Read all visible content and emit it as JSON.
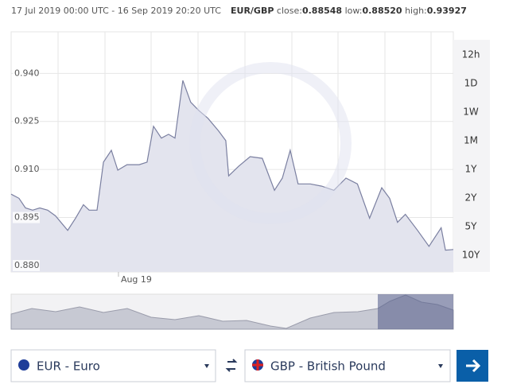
{
  "header": {
    "range": "17 Jul 2019 00:00 UTC - 16 Sep 2019 20:20 UTC",
    "pair": "EUR/GBP",
    "close_label": "close:",
    "close": "0.88548",
    "low_label": "low:",
    "low": "0.88520",
    "high_label": "high:",
    "high": "0.93927"
  },
  "ranges": [
    "12h",
    "1D",
    "1W",
    "1M",
    "1Y",
    "2Y",
    "5Y",
    "10Y"
  ],
  "from_currency": "EUR - Euro",
  "to_currency": "GBP - British Pound",
  "chart_data": {
    "type": "area",
    "color": "#7a7fa0",
    "fill": "#e3e4ee",
    "x": [
      0,
      1.1,
      2,
      3,
      4,
      5.1,
      6.2,
      7.9,
      9,
      10.1,
      10.9,
      12,
      12.9,
      14,
      14.9,
      16.2,
      17.9,
      19,
      19.9,
      21,
      22,
      22.9,
      24,
      25.1,
      26.2,
      27.5,
      29,
      30,
      30.4,
      31.8,
      33.4,
      35.1,
      36.8,
      37.9,
      39,
      40.1,
      41.8,
      43.4,
      45.1,
      46.8,
      48.4,
      50.1,
      51.8,
      52.9,
      54,
      55.1,
      56.8,
      58.4,
      60.1,
      60.7,
      61.8
    ],
    "values": [
      0.9023,
      0.901,
      0.898,
      0.8973,
      0.898,
      0.8973,
      0.8955,
      0.891,
      0.8948,
      0.899,
      0.8973,
      0.8973,
      0.9123,
      0.916,
      0.9098,
      0.9115,
      0.9115,
      0.9123,
      0.9235,
      0.9198,
      0.921,
      0.9198,
      0.9378,
      0.931,
      0.9285,
      0.926,
      0.922,
      0.919,
      0.908,
      0.911,
      0.914,
      0.9135,
      0.9035,
      0.9073,
      0.916,
      0.9055,
      0.9055,
      0.9048,
      0.9035,
      0.9073,
      0.9055,
      0.8948,
      0.9043,
      0.901,
      0.8935,
      0.896,
      0.891,
      0.886,
      0.8918,
      0.8848,
      0.885
    ],
    "xlim": [
      0,
      61.8
    ],
    "xticks": [
      {
        "value": 15,
        "label": "Aug 19"
      }
    ],
    "ylim": [
      0.878,
      0.953
    ],
    "yticks": [
      {
        "value": 0.94,
        "label": "0.940"
      },
      {
        "value": 0.925,
        "label": "0.925"
      },
      {
        "value": 0.91,
        "label": "0.910"
      },
      {
        "value": 0.895,
        "label": "0.895"
      },
      {
        "value": 0.88,
        "label": "0.880"
      }
    ],
    "grid": true
  }
}
